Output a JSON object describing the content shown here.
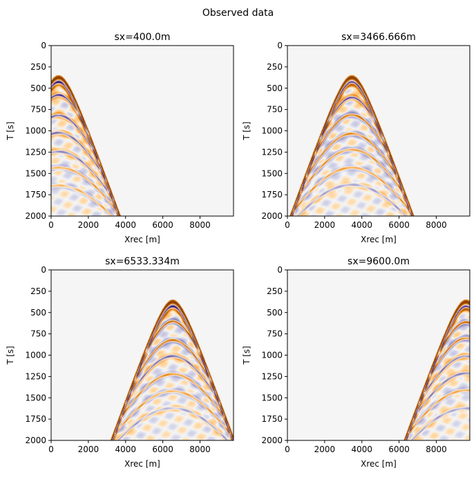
{
  "figure": {
    "suptitle": "Observed data"
  },
  "chart_data": [
    {
      "type": "heatmap",
      "title": "sx=400.0m",
      "source_x": 400.0,
      "xlabel": "Xrec [m]",
      "ylabel": "T [s]",
      "xlim": [
        0,
        9800
      ],
      "ylim": [
        2000,
        0
      ],
      "xticks": [
        0,
        2000,
        4000,
        6000,
        8000
      ],
      "yticks": [
        0,
        250,
        500,
        750,
        1000,
        1250,
        1500,
        1750,
        2000
      ],
      "direct_wave": {
        "apex_x": 400,
        "apex_t": 420,
        "velocity": 1650
      },
      "colormap": "PuOr"
    },
    {
      "type": "heatmap",
      "title": "sx=3466.666m",
      "source_x": 3466.666,
      "xlabel": "Xrec [m]",
      "ylabel": "T [s]",
      "xlim": [
        0,
        9800
      ],
      "ylim": [
        2000,
        0
      ],
      "xticks": [
        0,
        2000,
        4000,
        6000,
        8000
      ],
      "yticks": [
        0,
        250,
        500,
        750,
        1000,
        1250,
        1500,
        1750,
        2000
      ],
      "direct_wave": {
        "apex_x": 3466.666,
        "apex_t": 420,
        "velocity": 1650
      },
      "colormap": "PuOr"
    },
    {
      "type": "heatmap",
      "title": "sx=6533.334m",
      "source_x": 6533.334,
      "xlabel": "Xrec [m]",
      "ylabel": "T [s]",
      "xlim": [
        0,
        9800
      ],
      "ylim": [
        2000,
        0
      ],
      "xticks": [
        0,
        2000,
        4000,
        6000,
        8000
      ],
      "yticks": [
        0,
        250,
        500,
        750,
        1000,
        1250,
        1500,
        1750,
        2000
      ],
      "direct_wave": {
        "apex_x": 6533.334,
        "apex_t": 420,
        "velocity": 1650
      },
      "colormap": "PuOr"
    },
    {
      "type": "heatmap",
      "title": "sx=9600.0m",
      "source_x": 9600.0,
      "xlabel": "Xrec [m]",
      "ylabel": "T [s]",
      "xlim": [
        0,
        9800
      ],
      "ylim": [
        2000,
        0
      ],
      "xticks": [
        0,
        2000,
        4000,
        6000,
        8000
      ],
      "yticks": [
        0,
        250,
        500,
        750,
        1000,
        1250,
        1500,
        1750,
        2000
      ],
      "direct_wave": {
        "apex_x": 9600,
        "apex_t": 420,
        "velocity": 1650
      },
      "colormap": "PuOr"
    }
  ]
}
